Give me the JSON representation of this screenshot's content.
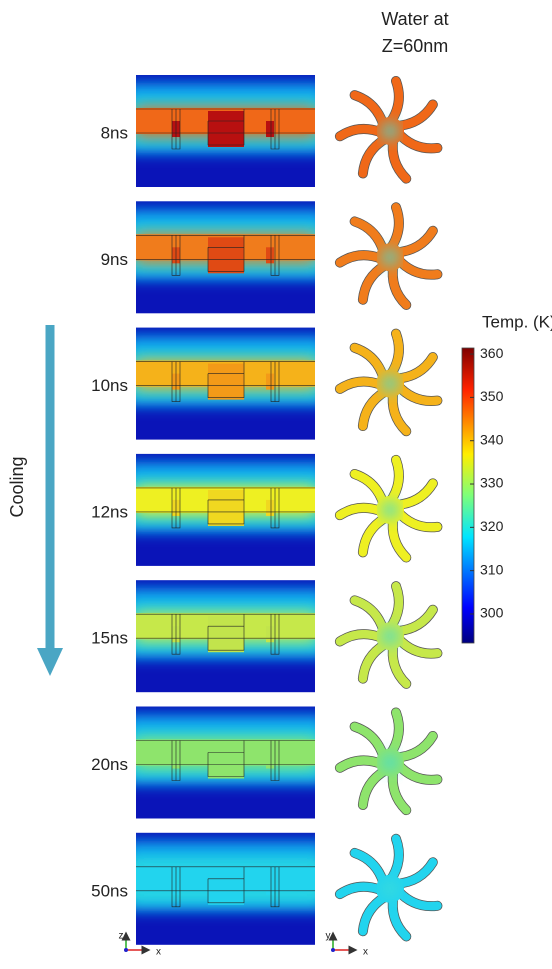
{
  "header": {
    "line1": "Water at",
    "line2": "Z=60nm"
  },
  "side_label": "Cooling",
  "rows": [
    {
      "label": "8ns",
      "color": "#f06818",
      "core": "#b81010"
    },
    {
      "label": "9ns",
      "color": "#f07c1c",
      "core": "#e04a14"
    },
    {
      "label": "10ns",
      "color": "#f5b21a",
      "core": "#f39a18"
    },
    {
      "label": "12ns",
      "color": "#eef022",
      "core": "#f0d820"
    },
    {
      "label": "15ns",
      "color": "#c6e84a",
      "core": "#c2e44c"
    },
    {
      "label": "20ns",
      "color": "#8ee46c",
      "core": "#8ee46c"
    },
    {
      "label": "50ns",
      "color": "#22d4ee",
      "core": "#22d4ee"
    }
  ],
  "colorbar": {
    "title": "Temp. (K)",
    "lim": [
      293.3,
      361.4
    ],
    "ticks": [
      300,
      310,
      320,
      330,
      340,
      350,
      360
    ]
  },
  "axes_left": {
    "up": "z",
    "right": "x"
  },
  "axes_right": {
    "up": "y",
    "right": "x"
  }
}
